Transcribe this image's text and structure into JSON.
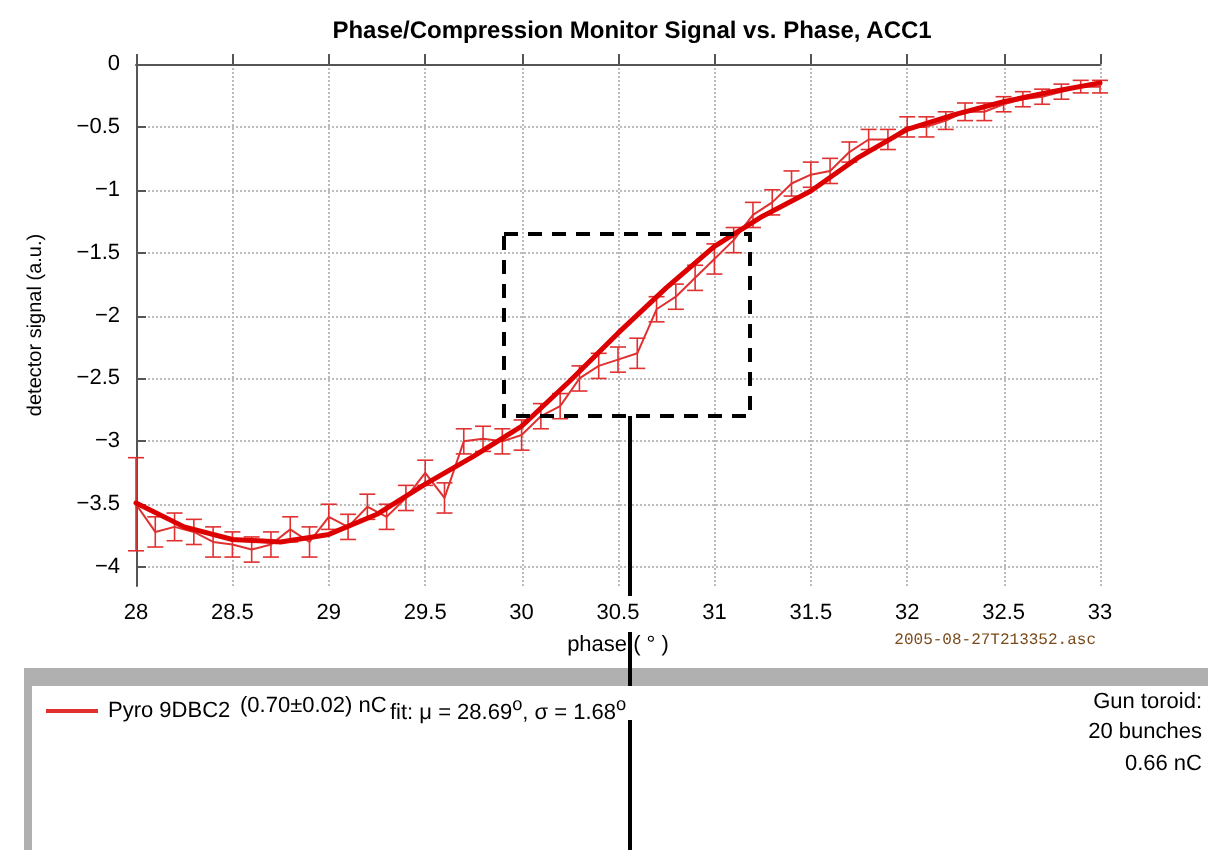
{
  "chart_data": {
    "type": "line",
    "title": "Phase/Compression Monitor Signal vs. Phase, ACC1",
    "xlabel": "phase ( ° )",
    "ylabel": "detector signal (a.u.)",
    "xlim": [
      28,
      33
    ],
    "xticks": [
      28,
      28.5,
      29,
      29.5,
      30,
      30.5,
      31,
      31.5,
      32,
      32.5,
      33
    ],
    "ylim": [
      -4.15,
      0
    ],
    "yticks": [
      -4,
      -3.5,
      -3,
      -2.5,
      -2,
      -1.5,
      -1,
      -0.5,
      0
    ],
    "grid": true,
    "legend": "bottom",
    "marker": "none",
    "line_style": "solid",
    "series": [
      {
        "name": "Pyro 9DBC2",
        "color": "#e03030",
        "x": [
          28,
          28.1,
          28.2,
          28.3,
          28.4,
          28.5,
          28.6,
          28.7,
          28.8,
          28.9,
          29,
          29.1,
          29.2,
          29.3,
          29.4,
          29.5,
          29.6,
          29.7,
          29.8,
          29.9,
          30,
          30.1,
          30.2,
          30.3,
          30.4,
          30.5,
          30.6,
          30.7,
          30.8,
          30.9,
          31,
          31.1,
          31.2,
          31.3,
          31.4,
          31.5,
          31.6,
          31.7,
          31.8,
          31.9,
          32,
          32.1,
          32.2,
          32.3,
          32.4,
          32.5,
          32.6,
          32.7,
          32.8,
          32.9,
          33
        ],
        "values": [
          -3.5,
          -3.72,
          -3.68,
          -3.72,
          -3.8,
          -3.82,
          -3.86,
          -3.82,
          -3.7,
          -3.8,
          -3.6,
          -3.68,
          -3.52,
          -3.6,
          -3.45,
          -3.25,
          -3.45,
          -3.0,
          -2.98,
          -3.0,
          -2.95,
          -2.8,
          -2.72,
          -2.5,
          -2.4,
          -2.35,
          -2.3,
          -1.95,
          -1.85,
          -1.7,
          -1.55,
          -1.4,
          -1.2,
          -1.1,
          -0.95,
          -0.88,
          -0.85,
          -0.7,
          -0.6,
          -0.6,
          -0.5,
          -0.5,
          -0.45,
          -0.38,
          -0.38,
          -0.32,
          -0.28,
          -0.26,
          -0.22,
          -0.18,
          -0.18
        ],
        "errors": [
          0.37,
          0.12,
          0.11,
          0.1,
          0.12,
          0.1,
          0.1,
          0.1,
          0.1,
          0.12,
          0.1,
          0.1,
          0.1,
          0.1,
          0.1,
          0.1,
          0.12,
          0.1,
          0.1,
          0.1,
          0.12,
          0.1,
          0.1,
          0.1,
          0.1,
          0.1,
          0.12,
          0.1,
          0.1,
          0.1,
          0.12,
          0.1,
          0.1,
          0.1,
          0.1,
          0.1,
          0.1,
          0.08,
          0.08,
          0.08,
          0.08,
          0.08,
          0.07,
          0.07,
          0.07,
          0.06,
          0.06,
          0.06,
          0.06,
          0.05,
          0.05
        ]
      },
      {
        "type": "line",
        "color": "#dd0000",
        "x": [
          28,
          28.25,
          28.5,
          28.75,
          29,
          29.25,
          29.5,
          29.75,
          30,
          30.25,
          30.5,
          30.75,
          31,
          31.25,
          31.5,
          31.75,
          32,
          32.25,
          32.5,
          32.75,
          33
        ],
        "values": [
          -3.49,
          -3.68,
          -3.78,
          -3.8,
          -3.74,
          -3.58,
          -3.34,
          -3.12,
          -2.88,
          -2.52,
          -2.14,
          -1.78,
          -1.45,
          -1.21,
          -1.01,
          -0.74,
          -0.52,
          -0.4,
          -0.3,
          -0.22,
          -0.15
        ]
      }
    ],
    "annotations": [
      "2005-08-27T213352.asc",
      "(0.70±0.02) nC",
      "fit: μ = 28.69$^{o}$,  σ = 1.68$^{o}$",
      "Gun toroid:",
      "20 bunches",
      "0.66 nC"
    ]
  }
}
